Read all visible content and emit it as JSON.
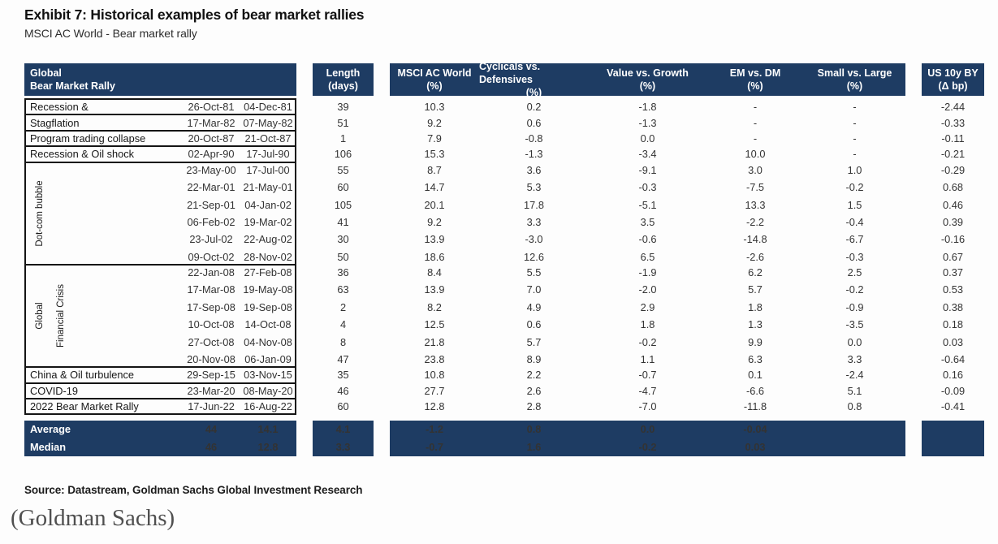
{
  "header": {
    "title": "Exhibit 7: Historical examples of bear market rallies",
    "subtitle": "MSCI AC World - Bear market rally"
  },
  "colors": {
    "navy": "#1e3c63",
    "border_black": "#141414",
    "header_text": "#ffffff"
  },
  "table_header": {
    "left": {
      "l1": "Global",
      "l2": "Bear Market Rally"
    },
    "length": {
      "l1": "Length",
      "l2": "(days)"
    },
    "cols": [
      {
        "l1": "MSCI AC World",
        "l2": "(%)"
      },
      {
        "l1": "Cyclicals vs. Defensives",
        "l2": "(%)"
      },
      {
        "l1": "Value vs. Growth",
        "l2": "(%)"
      },
      {
        "l1": "EM vs. DM",
        "l2": "(%)"
      },
      {
        "l1": "Small vs. Large",
        "l2": "(%)"
      }
    ],
    "us10y": {
      "l1": "US 10y BY",
      "l2": "(Δ bp)"
    }
  },
  "chart_data": {
    "type": "table",
    "title": "Exhibit 7: Historical examples of bear market rallies",
    "subtitle": "MSCI AC World - Bear market rally",
    "columns": [
      "Global Bear Market Rally",
      "Start",
      "End",
      "Length (days)",
      "MSCI AC World (%)",
      "Cyclicals vs. Defensives (%)",
      "Value vs. Growth (%)",
      "EM vs. DM (%)",
      "Small vs. Large (%)",
      "US 10y BY (Δ bp)"
    ],
    "groups": [
      {
        "label": "Recession &",
        "rows": [
          [
            "26-Oct-81",
            "04-Dec-81",
            "39",
            "10.3",
            "0.2",
            "-1.8",
            "-",
            "-",
            "-2.44"
          ]
        ]
      },
      {
        "label": "Stagflation",
        "rows": [
          [
            "17-Mar-82",
            "07-May-82",
            "51",
            "9.2",
            "0.6",
            "-1.3",
            "-",
            "-",
            "-0.33"
          ]
        ]
      },
      {
        "label": "Program trading collapse",
        "rows": [
          [
            "20-Oct-87",
            "21-Oct-87",
            "1",
            "7.9",
            "-0.8",
            "0.0",
            "-",
            "-",
            "-0.11"
          ]
        ]
      },
      {
        "label": "Recession & Oil shock",
        "rows": [
          [
            "02-Apr-90",
            "17-Jul-90",
            "106",
            "15.3",
            "-1.3",
            "-3.4",
            "10.0",
            "-",
            "-0.21"
          ]
        ]
      },
      {
        "vlabels": [
          "Dot-com bubble"
        ],
        "rows": [
          [
            "23-May-00",
            "17-Jul-00",
            "55",
            "8.7",
            "3.6",
            "-9.1",
            "3.0",
            "1.0",
            "-0.29"
          ],
          [
            "22-Mar-01",
            "21-May-01",
            "60",
            "14.7",
            "5.3",
            "-0.3",
            "-7.5",
            "-0.2",
            "0.68"
          ],
          [
            "21-Sep-01",
            "04-Jan-02",
            "105",
            "20.1",
            "17.8",
            "-5.1",
            "13.3",
            "1.5",
            "0.46"
          ],
          [
            "06-Feb-02",
            "19-Mar-02",
            "41",
            "9.2",
            "3.3",
            "3.5",
            "-2.2",
            "-0.4",
            "0.39"
          ],
          [
            "23-Jul-02",
            "22-Aug-02",
            "30",
            "13.9",
            "-3.0",
            "-0.6",
            "-14.8",
            "-6.7",
            "-0.16"
          ],
          [
            "09-Oct-02",
            "28-Nov-02",
            "50",
            "18.6",
            "12.6",
            "6.5",
            "-2.6",
            "-0.3",
            "0.67"
          ]
        ]
      },
      {
        "vlabels": [
          "Global",
          "Financial Crisis"
        ],
        "rows": [
          [
            "22-Jan-08",
            "27-Feb-08",
            "36",
            "8.4",
            "5.5",
            "-1.9",
            "6.2",
            "2.5",
            "0.37"
          ],
          [
            "17-Mar-08",
            "19-May-08",
            "63",
            "13.9",
            "7.0",
            "-2.0",
            "5.7",
            "-0.2",
            "0.53"
          ],
          [
            "17-Sep-08",
            "19-Sep-08",
            "2",
            "8.2",
            "4.9",
            "2.9",
            "1.8",
            "-0.9",
            "0.38"
          ],
          [
            "10-Oct-08",
            "14-Oct-08",
            "4",
            "12.5",
            "0.6",
            "1.8",
            "1.3",
            "-3.5",
            "0.18"
          ],
          [
            "27-Oct-08",
            "04-Nov-08",
            "8",
            "21.8",
            "5.7",
            "-0.2",
            "9.9",
            "0.0",
            "0.03"
          ],
          [
            "20-Nov-08",
            "06-Jan-09",
            "47",
            "23.8",
            "8.9",
            "1.1",
            "6.3",
            "3.3",
            "-0.64"
          ]
        ]
      },
      {
        "label": "China & Oil turbulence",
        "rows": [
          [
            "29-Sep-15",
            "03-Nov-15",
            "35",
            "10.8",
            "2.2",
            "-0.7",
            "0.1",
            "-2.4",
            "0.16"
          ]
        ]
      },
      {
        "label": "COVID-19",
        "rows": [
          [
            "23-Mar-20",
            "08-May-20",
            "46",
            "27.7",
            "2.6",
            "-4.7",
            "-6.6",
            "5.1",
            "-0.09"
          ]
        ]
      },
      {
        "label": "2022 Bear Market Rally",
        "rows": [
          [
            "17-Jun-22",
            "16-Aug-22",
            "60",
            "12.8",
            "2.8",
            "-7.0",
            "-11.8",
            "0.8",
            "-0.41"
          ]
        ]
      }
    ],
    "summary": [
      {
        "label": "Average",
        "values": [
          "44",
          "14.1",
          "4.1",
          "-1.2",
          "0.8",
          "0.0",
          "-0.04"
        ]
      },
      {
        "label": "Median",
        "values": [
          "46",
          "12.8",
          "3.3",
          "-0.7",
          "1.6",
          "-0.2",
          "0.03"
        ]
      }
    ]
  },
  "footer": {
    "source": "Source: Datastream, Goldman Sachs Global Investment Research",
    "attribution": "(Goldman Sachs)"
  }
}
